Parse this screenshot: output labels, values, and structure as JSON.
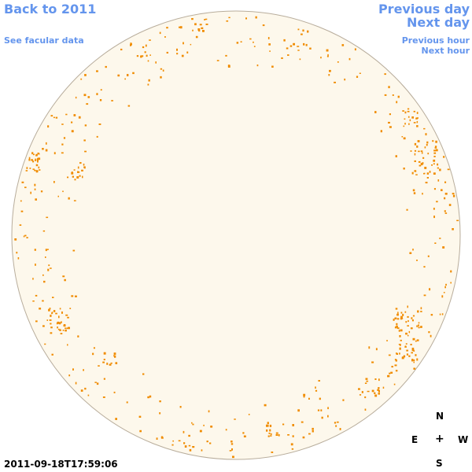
{
  "nav": {
    "back": "Back to 2011",
    "facular": "See facular data",
    "previous_day": "Previous day",
    "next_day": "Next day",
    "previous_hour": "Previous hour",
    "next_hour": "Next hour"
  },
  "timestamp": "2011-09-18T17:59:06",
  "compass": {
    "north": "N",
    "east": "E",
    "center": "+",
    "west": "W",
    "south": "S"
  },
  "colors": {
    "link": "#6495ed",
    "disk_fill": "#fdf8ec",
    "disk_outline": "#b8ad9c",
    "facula": "#f08c00"
  }
}
